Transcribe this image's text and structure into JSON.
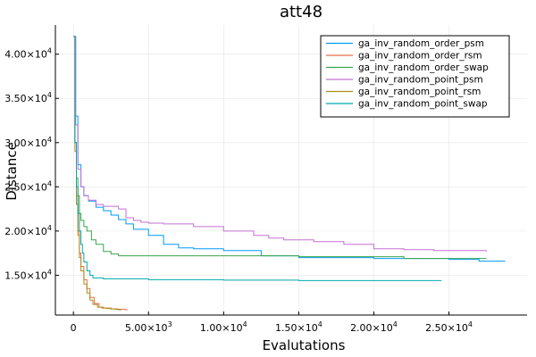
{
  "chart_data": {
    "type": "line",
    "title": "att48",
    "xlabel": "Evalutations",
    "ylabel": "Distance",
    "xlim": [
      -1200,
      30200
    ],
    "ylim": [
      10500,
      43300
    ],
    "grid": true,
    "legend_position": "top-right",
    "x_ticks": [
      {
        "value": 0,
        "label": "0",
        "exp": ""
      },
      {
        "value": 5000,
        "label": "5.00×10",
        "exp": "3"
      },
      {
        "value": 10000,
        "label": "1.00×10",
        "exp": "4"
      },
      {
        "value": 15000,
        "label": "1.50×10",
        "exp": "4"
      },
      {
        "value": 20000,
        "label": "2.00×10",
        "exp": "4"
      },
      {
        "value": 25000,
        "label": "2.50×10",
        "exp": "4"
      }
    ],
    "y_ticks": [
      {
        "value": 15000,
        "label": "1.50×10",
        "exp": "4"
      },
      {
        "value": 20000,
        "label": "2.00×10",
        "exp": "4"
      },
      {
        "value": 25000,
        "label": "2.50×10",
        "exp": "4"
      },
      {
        "value": 30000,
        "label": "3.00×10",
        "exp": "4"
      },
      {
        "value": 35000,
        "label": "3.50×10",
        "exp": "4"
      },
      {
        "value": 40000,
        "label": "4.00×10",
        "exp": "4"
      }
    ],
    "series": [
      {
        "name": "ga_inv_random_order_psm",
        "color": "#009af9",
        "step": true,
        "x": [
          0,
          150,
          300,
          500,
          700,
          1000,
          1500,
          2000,
          2500,
          3000,
          3500,
          4000,
          5000,
          6000,
          7000,
          8000,
          10000,
          12500,
          15000,
          20000,
          25000,
          27000,
          28700
        ],
        "y": [
          42000,
          33000,
          27500,
          25000,
          24000,
          23400,
          22700,
          22300,
          21800,
          21300,
          20800,
          20200,
          19500,
          18500,
          18100,
          18000,
          17800,
          17200,
          17000,
          16900,
          16800,
          16600,
          16500
        ]
      },
      {
        "name": "ga_inv_random_order_rsm",
        "color": "#e26f46",
        "step": true,
        "x": [
          0,
          100,
          200,
          300,
          400,
          500,
          700,
          900,
          1100,
          1400,
          1700,
          2000,
          2500,
          3000,
          3500,
          3600
        ],
        "y": [
          42000,
          30000,
          24000,
          20000,
          17500,
          16000,
          14500,
          13500,
          12500,
          11800,
          11400,
          11300,
          11200,
          11150,
          11100,
          11100
        ]
      },
      {
        "name": "ga_inv_random_order_swap",
        "color": "#3da44d",
        "step": true,
        "x": [
          0,
          100,
          200,
          300,
          400,
          500,
          700,
          900,
          1200,
          1500,
          2000,
          2500,
          3000,
          5000,
          10000,
          15000,
          21000,
          22000,
          26000,
          27500
        ],
        "y": [
          42000,
          30000,
          26000,
          24000,
          22000,
          21200,
          20500,
          20000,
          19000,
          18500,
          17700,
          17400,
          17200,
          17200,
          17200,
          17100,
          17100,
          16900,
          16900,
          16900
        ]
      },
      {
        "name": "ga_inv_random_point_psm",
        "color": "#c271d2",
        "step": true,
        "x": [
          0,
          150,
          300,
          500,
          700,
          1000,
          1500,
          2000,
          3000,
          3500,
          4000,
          4500,
          5000,
          6000,
          8000,
          10000,
          12000,
          13000,
          14000,
          16000,
          18000,
          20000,
          22000,
          24000,
          27500
        ],
        "y": [
          42000,
          32000,
          27000,
          25000,
          24000,
          23500,
          23000,
          22800,
          22500,
          21500,
          21200,
          21000,
          20900,
          20800,
          20500,
          20000,
          19500,
          19200,
          19000,
          18800,
          18500,
          18000,
          17900,
          17800,
          17700
        ]
      },
      {
        "name": "ga_inv_random_point_rsm",
        "color": "#ac8e18",
        "step": true,
        "x": [
          0,
          100,
          200,
          300,
          400,
          500,
          700,
          900,
          1100,
          1300,
          1600,
          1900,
          2200,
          2500,
          2800,
          3000,
          3200
        ],
        "y": [
          42000,
          29000,
          23000,
          19500,
          17000,
          15500,
          14000,
          13000,
          12200,
          11700,
          11400,
          11300,
          11250,
          11200,
          11150,
          11100,
          11100
        ]
      },
      {
        "name": "ga_inv_random_point_swap",
        "color": "#00a9ad",
        "step": true,
        "x": [
          0,
          100,
          200,
          300,
          400,
          500,
          600,
          700,
          900,
          1100,
          1300,
          2000,
          5000,
          10000,
          15000,
          20000,
          24500
        ],
        "y": [
          42000,
          30000,
          25000,
          22000,
          20000,
          18500,
          17500,
          16500,
          15500,
          15000,
          14700,
          14600,
          14500,
          14450,
          14400,
          14400,
          14400
        ]
      }
    ]
  }
}
